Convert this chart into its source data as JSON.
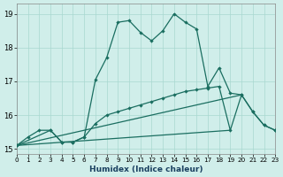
{
  "xlabel": "Humidex (Indice chaleur)",
  "bg_color": "#d0eeea",
  "grid_color": "#a8d8d0",
  "line_color": "#1a6e60",
  "xlim": [
    0,
    23
  ],
  "ylim": [
    14.85,
    19.3
  ],
  "xticks": [
    0,
    1,
    2,
    3,
    4,
    5,
    6,
    7,
    8,
    9,
    10,
    11,
    12,
    13,
    14,
    15,
    16,
    17,
    18,
    19,
    20,
    21,
    22,
    23
  ],
  "yticks": [
    15,
    16,
    17,
    18,
    19
  ],
  "line1_x": [
    0,
    1,
    2,
    3,
    4,
    5,
    6,
    7,
    8,
    9,
    10,
    11,
    12,
    13,
    14,
    15,
    16,
    17,
    18,
    19,
    20,
    21,
    22,
    23
  ],
  "line1_y": [
    15.1,
    15.35,
    15.55,
    15.55,
    15.2,
    15.2,
    15.35,
    17.05,
    17.7,
    18.75,
    18.8,
    18.45,
    18.2,
    18.5,
    19.0,
    18.75,
    18.55,
    16.85,
    17.4,
    16.65,
    16.6,
    16.1,
    15.7,
    15.55
  ],
  "line2_x": [
    0,
    3,
    4,
    5,
    6,
    7,
    8,
    9,
    10,
    11,
    12,
    13,
    14,
    15,
    16,
    17,
    18,
    19,
    20,
    21,
    22,
    23
  ],
  "line2_y": [
    15.1,
    15.55,
    15.2,
    15.2,
    15.35,
    15.75,
    16.0,
    16.1,
    16.2,
    16.3,
    16.4,
    16.5,
    16.6,
    16.7,
    16.75,
    16.8,
    16.85,
    15.55,
    16.6,
    16.1,
    15.7,
    15.55
  ],
  "line3_x": [
    0,
    19
  ],
  "line3_y": [
    15.1,
    15.55
  ],
  "line4_x": [
    0,
    20
  ],
  "line4_y": [
    15.1,
    16.6
  ]
}
